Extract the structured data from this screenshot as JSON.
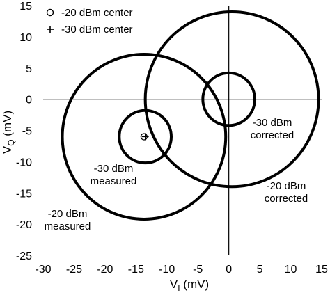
{
  "chart_data": {
    "type": "scatter",
    "xlabel": {
      "main": "V",
      "sub": "I",
      "unit": " (mV)"
    },
    "ylabel": {
      "main": "V",
      "sub": "Q",
      "unit": " (mV)"
    },
    "xlim": [
      -30,
      15
    ],
    "ylim": [
      -25,
      15
    ],
    "xticks": [
      -30,
      -25,
      -20,
      -15,
      -10,
      -5,
      0,
      5,
      10,
      15
    ],
    "yticks": [
      -25,
      -20,
      -15,
      -10,
      -5,
      0,
      5,
      10,
      15
    ],
    "x_tick_labels": [
      "-30",
      "-25",
      "-20",
      "-15",
      "-10",
      "-5",
      "0",
      "5",
      "10",
      "15"
    ],
    "y_tick_labels": [
      "-25",
      "-20",
      "-15",
      "-10",
      "-5",
      "0",
      "5",
      "10",
      "15"
    ],
    "grid": false,
    "legend_placement": "top-left",
    "legend": [
      {
        "marker": "o",
        "label": "-20 dBm center"
      },
      {
        "marker": "+",
        "label": "-30 dBm center"
      }
    ],
    "circles": [
      {
        "center": [
          -13.7,
          -6.0
        ],
        "radius": 13.2,
        "annotation": [
          "-20 dBm",
          "measured"
        ]
      },
      {
        "center": [
          0.5,
          0.0
        ],
        "radius": 14.0,
        "annotation": [
          "-20 dBm",
          "corrected"
        ]
      },
      {
        "center": [
          -13.5,
          -6.0
        ],
        "radius": 4.2,
        "annotation": [
          "-30 dBm",
          "measured"
        ]
      },
      {
        "center": [
          0.0,
          0.0
        ],
        "radius": 4.2,
        "annotation": [
          "-30 dBm",
          "corrected"
        ]
      }
    ],
    "center_markers": [
      {
        "marker": "o",
        "x": -13.7,
        "y": -6.0
      },
      {
        "marker": "+",
        "x": -13.5,
        "y": -6.0
      }
    ]
  }
}
